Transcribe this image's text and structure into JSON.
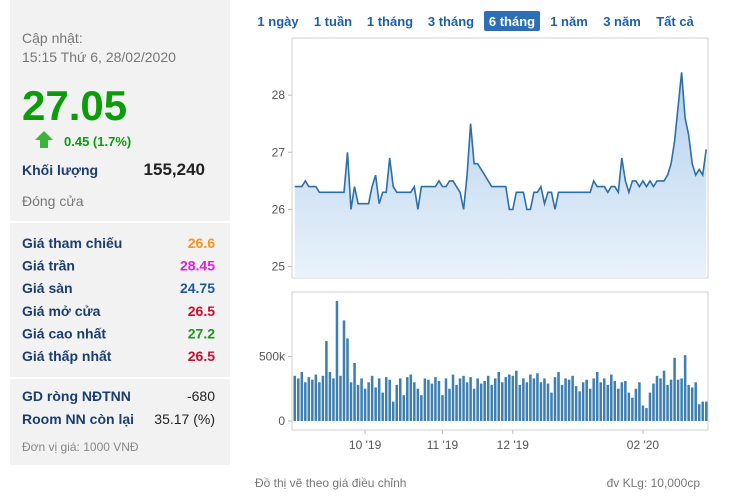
{
  "panel": {
    "update_label": "Cập nhật:",
    "update_time": "15:15 Thứ 6, 28/02/2020",
    "price": "27.05",
    "price_color": "#0a9d0a",
    "change": "0.45 (1.7%)",
    "volume_label": "Khối lượng",
    "volume": "155,240",
    "close_label": "Đóng cửa",
    "rows": [
      {
        "label": "Giá tham chiếu",
        "value": "26.6",
        "color": "#f7941d"
      },
      {
        "label": "Giá trần",
        "value": "28.45",
        "color": "#e01ee0"
      },
      {
        "label": "Giá sàn",
        "value": "24.75",
        "color": "#1e5a9a"
      },
      {
        "label": "Giá mở cửa",
        "value": "26.5",
        "color": "#c8102e"
      },
      {
        "label": "Giá cao nhất",
        "value": "27.2",
        "color": "#1a9a1a"
      },
      {
        "label": "Giá thấp nhất",
        "value": "26.5",
        "color": "#c8102e"
      }
    ],
    "foreign": [
      {
        "label": "GD ròng NĐTNN",
        "value": "-680"
      },
      {
        "label": "Room NN còn lại",
        "value": "35.17 (%)"
      }
    ],
    "unit_note": "Đơn vị giá: 1000 VNĐ"
  },
  "range_buttons": [
    "1 ngày",
    "1 tuần",
    "1 tháng",
    "3 tháng",
    "6 tháng",
    "1 năm",
    "3 năm",
    "Tất cả"
  ],
  "selected_range": 4,
  "footer_left": "Đồ thị vẽ theo giá điều chỉnh",
  "footer_right": "đv KLg: 10,000cp",
  "chart_data": [
    {
      "type": "area",
      "color": "#2e6fa7",
      "ylim": [
        24.8,
        29
      ],
      "yticks": [
        25,
        26,
        27,
        28
      ],
      "values": [
        26.4,
        26.4,
        26.4,
        26.5,
        26.4,
        26.4,
        26.4,
        26.3,
        26.3,
        26.3,
        26.3,
        26.3,
        26.3,
        26.3,
        26.3,
        27.0,
        26.0,
        26.4,
        26.1,
        26.1,
        26.1,
        26.1,
        26.4,
        26.6,
        26.1,
        26.3,
        26.3,
        26.9,
        26.4,
        26.3,
        26.3,
        26.3,
        26.3,
        26.3,
        26.4,
        26.0,
        26.4,
        26.4,
        26.4,
        26.4,
        26.4,
        26.5,
        26.4,
        26.4,
        26.5,
        26.5,
        26.4,
        26.3,
        26.0,
        26.6,
        27.5,
        26.8,
        26.8,
        26.7,
        26.6,
        26.5,
        26.4,
        26.4,
        26.4,
        26.4,
        26.4,
        26.0,
        26.0,
        26.3,
        26.3,
        26.3,
        26.0,
        26.0,
        26.3,
        26.3,
        26.4,
        26.1,
        26.3,
        26.3,
        26.0,
        26.3,
        26.3,
        26.3,
        26.3,
        26.3,
        26.3,
        26.3,
        26.3,
        26.3,
        26.3,
        26.5,
        26.4,
        26.4,
        26.4,
        26.3,
        26.4,
        26.4,
        26.3,
        26.9,
        26.5,
        26.3,
        26.5,
        26.5,
        26.4,
        26.5,
        26.4,
        26.5,
        26.4,
        26.5,
        26.5,
        26.5,
        26.6,
        26.8,
        27.2,
        27.8,
        28.4,
        27.6,
        27.3,
        26.8,
        26.6,
        26.7,
        26.6,
        27.05
      ]
    },
    {
      "type": "bar",
      "color": "#3f7fb0",
      "ylim": [
        -70000,
        1000000
      ],
      "yticks": [
        0,
        {
          "value": 500000,
          "label": "500k"
        }
      ],
      "categories": [
        null,
        null,
        null,
        null,
        null,
        null,
        null,
        null,
        null,
        null,
        null,
        null,
        null,
        null,
        null,
        null,
        null,
        null,
        null,
        null,
        "10 '19",
        null,
        null,
        null,
        null,
        null,
        null,
        null,
        null,
        null,
        null,
        null,
        null,
        null,
        null,
        null,
        null,
        null,
        null,
        null,
        null,
        null,
        "11 '19",
        null,
        null,
        null,
        null,
        null,
        null,
        null,
        null,
        null,
        null,
        null,
        null,
        null,
        null,
        null,
        null,
        null,
        null,
        null,
        "12 '19",
        null,
        null,
        null,
        null,
        null,
        null,
        null,
        null,
        null,
        null,
        null,
        null,
        null,
        null,
        null,
        null,
        null,
        null,
        null,
        null,
        null,
        null,
        null,
        null,
        null,
        null,
        null,
        null,
        null,
        null,
        null,
        null,
        null,
        null,
        null,
        null,
        "02 '20",
        null,
        null,
        null,
        null,
        null,
        null,
        null,
        null,
        null,
        null,
        null,
        null,
        null,
        null,
        null,
        null,
        null,
        null
      ],
      "values": [
        350000,
        330000,
        380000,
        300000,
        340000,
        320000,
        360000,
        300000,
        350000,
        620000,
        380000,
        330000,
        930000,
        350000,
        780000,
        640000,
        300000,
        450000,
        280000,
        330000,
        250000,
        300000,
        350000,
        260000,
        330000,
        220000,
        340000,
        320000,
        150000,
        280000,
        330000,
        200000,
        340000,
        360000,
        300000,
        250000,
        200000,
        330000,
        320000,
        290000,
        340000,
        310000,
        200000,
        330000,
        250000,
        360000,
        280000,
        330000,
        350000,
        300000,
        340000,
        250000,
        330000,
        290000,
        310000,
        350000,
        280000,
        330000,
        380000,
        300000,
        340000,
        360000,
        350000,
        390000,
        280000,
        330000,
        300000,
        360000,
        330000,
        370000,
        300000,
        330000,
        290000,
        220000,
        340000,
        380000,
        280000,
        330000,
        320000,
        350000,
        270000,
        230000,
        300000,
        320000,
        250000,
        330000,
        380000,
        300000,
        330000,
        280000,
        360000,
        310000,
        250000,
        300000,
        310000,
        220000,
        180000,
        250000,
        300000,
        120000,
        100000,
        220000,
        290000,
        350000,
        330000,
        390000,
        280000,
        320000,
        490000,
        320000,
        330000,
        510000,
        280000,
        260000,
        300000,
        130000,
        150000,
        150000
      ]
    }
  ]
}
